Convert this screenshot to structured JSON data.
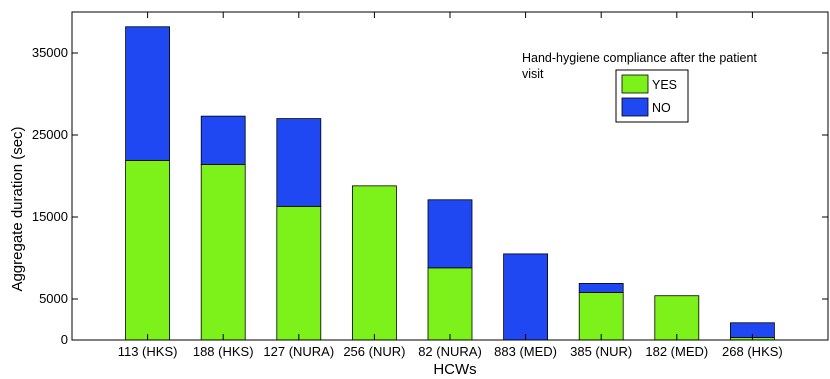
{
  "chart_data": {
    "type": "bar",
    "stacked": true,
    "title": "",
    "xlabel": "HCWs",
    "ylabel": "Aggregate duration (sec)",
    "ylim": [
      0,
      40000
    ],
    "yticks": [
      0,
      5000,
      15000,
      25000,
      35000
    ],
    "grid": false,
    "legend_title": "Hand-hygiene compliance after the patient visit",
    "legend_placement": "top-right",
    "categories": [
      "113 (HKS)",
      "188 (HKS)",
      "127 (NURA)",
      "256 (NUR)",
      "82 (NURA)",
      "883 (MED)",
      "385 (NUR)",
      "182 (MED)",
      "268 (HKS)"
    ],
    "series": [
      {
        "name": "YES",
        "color": "#7cf21a",
        "values": [
          21900,
          21400,
          16300,
          18800,
          8800,
          0,
          5800,
          5400,
          300
        ]
      },
      {
        "name": "NO",
        "color": "#1f48f2",
        "values": [
          16300,
          5900,
          10700,
          0,
          8300,
          10500,
          1100,
          0,
          1800
        ]
      }
    ]
  }
}
